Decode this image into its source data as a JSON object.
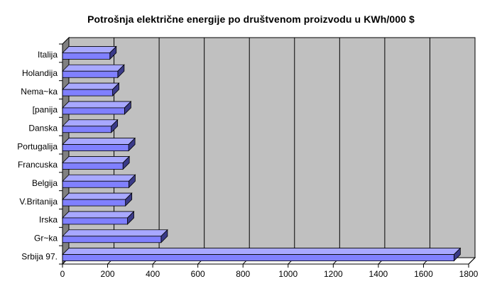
{
  "chart_data": {
    "type": "bar",
    "orientation": "horizontal",
    "style": "3d",
    "title": "Potrošnja električne energije po društvenom proizvodu u KWh/000 $",
    "xlabel": "",
    "ylabel": "",
    "categories": [
      "Italija",
      "Holandija",
      "Nema~ka",
      "[panija",
      "Danska",
      "Portugalija",
      "Francuska",
      "Belgija",
      "V.Britanija",
      "Irska",
      "Gr~ka",
      "Srbija  97."
    ],
    "values": [
      210,
      245,
      222,
      275,
      216,
      293,
      268,
      294,
      279,
      288,
      437,
      1735
    ],
    "xlim": [
      0,
      1800
    ],
    "xticks": [
      0,
      200,
      400,
      600,
      800,
      1000,
      1200,
      1400,
      1600,
      1800
    ],
    "grid": true,
    "colors": {
      "bar_front": "#8080ff",
      "bar_top": "#a8a8ff",
      "bar_side": "#3a3a88",
      "plot_back": "#c0c0c0",
      "plot_floor": "#808080"
    }
  }
}
